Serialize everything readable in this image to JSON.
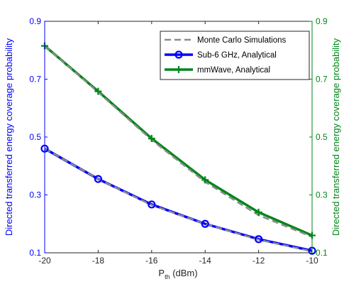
{
  "chart_data": {
    "type": "line",
    "x": [
      -20,
      -18,
      -16,
      -14,
      -12,
      -10
    ],
    "xlim": [
      -20,
      -10
    ],
    "x_ticks": [
      "-20",
      "-18",
      "-16",
      "-14",
      "-12",
      "-10"
    ],
    "xlabel_main": "P",
    "xlabel_sub": "th",
    "xlabel_unit": " (dBm)",
    "ylim": [
      0.1,
      0.9
    ],
    "y_ticks": [
      "0.1",
      "0.3",
      "0.5",
      "0.7",
      "0.9"
    ],
    "ylabel_left": "Directed transferred energy coverage probability",
    "ylabel_right": "Directed transferred energy coverage probability",
    "left_axis_color": "#0000ff",
    "right_axis_color": "#00861a",
    "grid": false,
    "legend_position": "top-right",
    "series": [
      {
        "name": "Monte Carlo Simulations",
        "style": "dashed",
        "color": "#8c8c8c",
        "marker": "none",
        "values_a": [
          0.46,
          0.355,
          0.265,
          0.2,
          0.145,
          0.105
        ],
        "values_b": [
          0.815,
          0.655,
          0.49,
          0.345,
          0.23,
          0.155
        ]
      },
      {
        "name": "Sub-6 GHz, Analytical",
        "style": "solid",
        "color": "#0000ff",
        "marker": "circle",
        "values": [
          0.46,
          0.355,
          0.267,
          0.2,
          0.147,
          0.107
        ]
      },
      {
        "name": "mmWave, Analytical",
        "style": "solid",
        "color": "#00861a",
        "marker": "plus",
        "values": [
          0.815,
          0.658,
          0.495,
          0.352,
          0.24,
          0.16
        ]
      }
    ]
  }
}
